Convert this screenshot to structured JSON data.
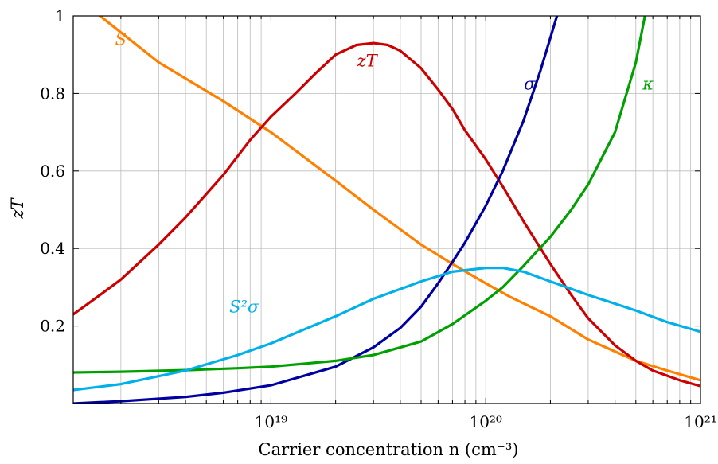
{
  "chart_data": {
    "type": "line",
    "x_scale": "log",
    "xlim": [
      1.2e+18,
      1e+21
    ],
    "ylim": [
      0,
      1
    ],
    "grid": true,
    "xlabel": "Carrier concentration n (cm⁻³)",
    "ylabel": "zT",
    "x_ticks": [
      {
        "value": 1e+19,
        "label": "10¹⁹"
      },
      {
        "value": 1e+20,
        "label": "10²⁰"
      },
      {
        "value": 1e+21,
        "label": "10²¹"
      }
    ],
    "y_ticks": [
      {
        "value": 0.2,
        "label": "0.2"
      },
      {
        "value": 0.4,
        "label": "0.4"
      },
      {
        "value": 0.6,
        "label": "0.6"
      },
      {
        "value": 0.8,
        "label": "0.8"
      },
      {
        "value": 1.0,
        "label": "1"
      }
    ],
    "series": [
      {
        "name": "S",
        "color": "#ff8000",
        "label_at": [
          2e+18,
          0.925
        ],
        "points": [
          [
            1.2e+18,
            1.06
          ],
          [
            1.6e+18,
            1.0
          ],
          [
            3e+18,
            0.88
          ],
          [
            6e+18,
            0.78
          ],
          [
            1e+19,
            0.7
          ],
          [
            2e+19,
            0.575
          ],
          [
            3e+19,
            0.5
          ],
          [
            5e+19,
            0.41
          ],
          [
            7e+19,
            0.36
          ],
          [
            1e+20,
            0.31
          ],
          [
            1.3e+20,
            0.275
          ],
          [
            2e+20,
            0.225
          ],
          [
            3e+20,
            0.165
          ],
          [
            5e+20,
            0.11
          ],
          [
            7e+20,
            0.085
          ],
          [
            1e+21,
            0.06
          ]
        ]
      },
      {
        "name": "zT",
        "color": "#cc0000",
        "label_at": [
          2.8e+19,
          0.87
        ],
        "points": [
          [
            1.2e+18,
            0.23
          ],
          [
            1.6e+18,
            0.28
          ],
          [
            2e+18,
            0.32
          ],
          [
            3e+18,
            0.41
          ],
          [
            4e+18,
            0.48
          ],
          [
            6e+18,
            0.59
          ],
          [
            8e+18,
            0.68
          ],
          [
            1e+19,
            0.74
          ],
          [
            1.3e+19,
            0.8
          ],
          [
            1.6e+19,
            0.85
          ],
          [
            2e+19,
            0.9
          ],
          [
            2.5e+19,
            0.925
          ],
          [
            3e+19,
            0.93
          ],
          [
            3.5e+19,
            0.925
          ],
          [
            4e+19,
            0.91
          ],
          [
            5e+19,
            0.865
          ],
          [
            6e+19,
            0.81
          ],
          [
            7e+19,
            0.76
          ],
          [
            8e+19,
            0.705
          ],
          [
            1e+20,
            0.63
          ],
          [
            1.2e+20,
            0.56
          ],
          [
            1.5e+20,
            0.47
          ],
          [
            2e+20,
            0.36
          ],
          [
            2.5e+20,
            0.28
          ],
          [
            3e+20,
            0.22
          ],
          [
            4e+20,
            0.15
          ],
          [
            5e+20,
            0.11
          ],
          [
            6e+20,
            0.085
          ],
          [
            8e+20,
            0.06
          ],
          [
            1e+21,
            0.045
          ]
        ]
      },
      {
        "name": "σ",
        "color": "#0000a0",
        "label_at": [
          1.6e+20,
          0.81
        ],
        "points": [
          [
            1.2e+18,
            0.0
          ],
          [
            2e+18,
            0.006
          ],
          [
            4e+18,
            0.017
          ],
          [
            6e+18,
            0.028
          ],
          [
            1e+19,
            0.047
          ],
          [
            2e+19,
            0.095
          ],
          [
            3e+19,
            0.145
          ],
          [
            4e+19,
            0.195
          ],
          [
            5e+19,
            0.25
          ],
          [
            6e+19,
            0.31
          ],
          [
            7e+19,
            0.365
          ],
          [
            8e+19,
            0.415
          ],
          [
            1e+20,
            0.51
          ],
          [
            1.2e+20,
            0.6
          ],
          [
            1.5e+20,
            0.73
          ],
          [
            1.8e+20,
            0.86
          ],
          [
            2.2e+20,
            1.02
          ]
        ]
      },
      {
        "name": "κ",
        "color": "#00a000",
        "label_at": [
          5.7e+20,
          0.81
        ],
        "points": [
          [
            1.2e+18,
            0.08
          ],
          [
            2e+18,
            0.082
          ],
          [
            4e+18,
            0.086
          ],
          [
            7e+18,
            0.091
          ],
          [
            1e+19,
            0.095
          ],
          [
            2e+19,
            0.11
          ],
          [
            3e+19,
            0.125
          ],
          [
            5e+19,
            0.16
          ],
          [
            7e+19,
            0.205
          ],
          [
            1e+20,
            0.265
          ],
          [
            1.2e+20,
            0.3
          ],
          [
            1.5e+20,
            0.355
          ],
          [
            2e+20,
            0.43
          ],
          [
            2.5e+20,
            0.5
          ],
          [
            3e+20,
            0.565
          ],
          [
            4e+20,
            0.7
          ],
          [
            5e+20,
            0.88
          ],
          [
            5.6e+20,
            1.02
          ]
        ]
      },
      {
        "name": "S²σ",
        "color": "#00b0e8",
        "label_at": [
          7.5e+18,
          0.235
        ],
        "points": [
          [
            1.2e+18,
            0.035
          ],
          [
            2e+18,
            0.05
          ],
          [
            4e+18,
            0.085
          ],
          [
            7e+18,
            0.125
          ],
          [
            1e+19,
            0.155
          ],
          [
            2e+19,
            0.225
          ],
          [
            3e+19,
            0.27
          ],
          [
            5e+19,
            0.315
          ],
          [
            7e+19,
            0.34
          ],
          [
            1e+20,
            0.35
          ],
          [
            1.2e+20,
            0.35
          ],
          [
            1.5e+20,
            0.34
          ],
          [
            2e+20,
            0.315
          ],
          [
            3e+20,
            0.28
          ],
          [
            5e+20,
            0.24
          ],
          [
            7e+20,
            0.21
          ],
          [
            1e+21,
            0.185
          ]
        ]
      }
    ]
  }
}
